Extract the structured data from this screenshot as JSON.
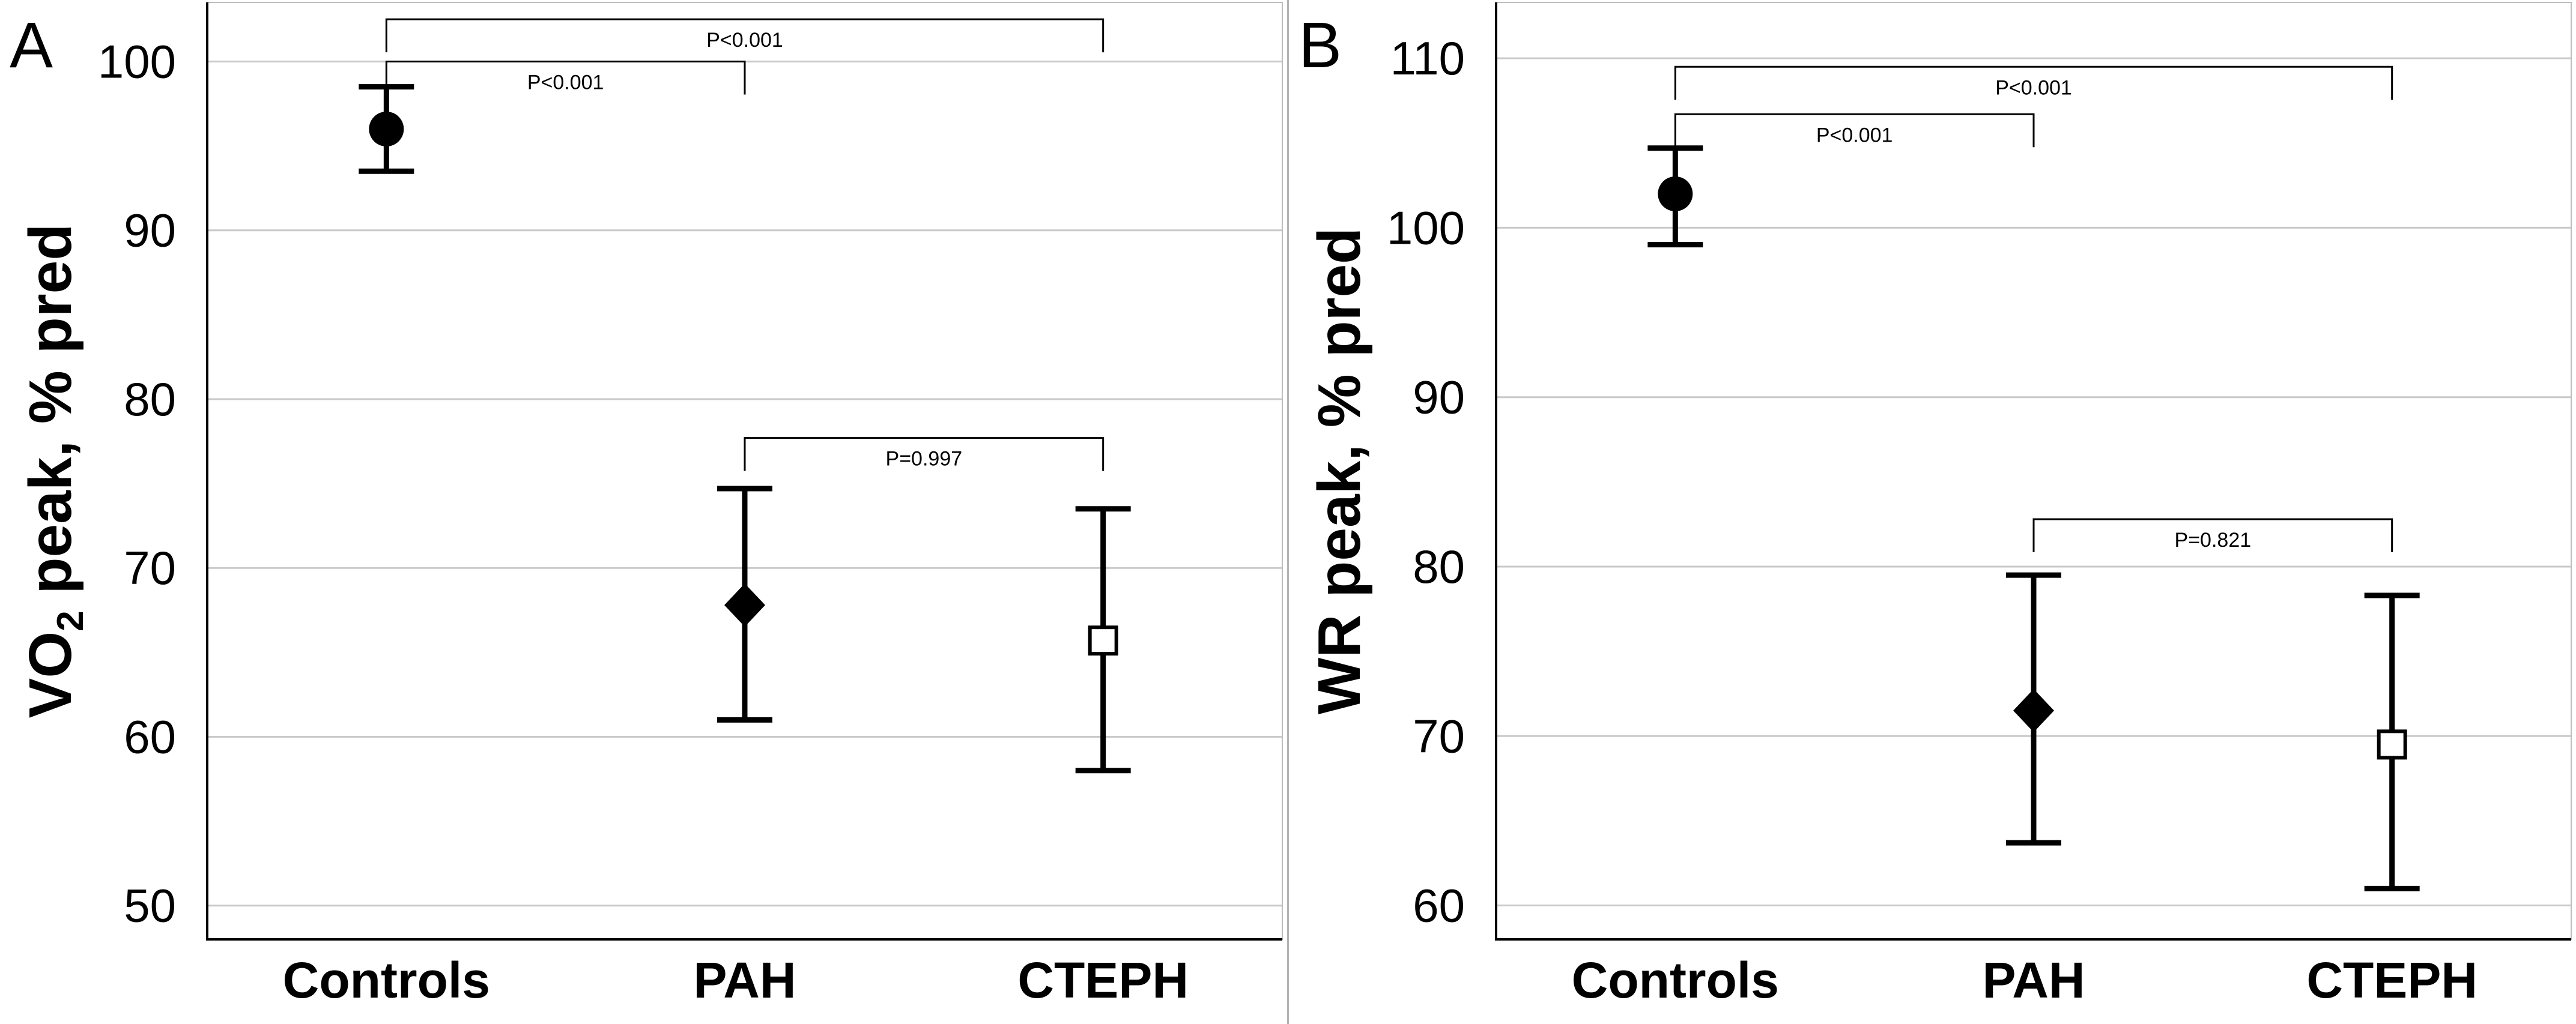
{
  "colors": {
    "text": "#000000",
    "marker": "#000000",
    "axis": "#000000",
    "gridline": "#c9c9c9",
    "frame": "#bdbdbd",
    "divider": "#b3b3b3",
    "background": "#ffffff"
  },
  "chart_data": [
    {
      "type": "scatter",
      "subtype": "mean-with-error-bars",
      "panel_label": "A",
      "ylabel": "VO2 peak, % pred",
      "ylabel_parts": [
        {
          "text": "VO"
        },
        {
          "text": "2",
          "sub": true
        },
        {
          "text": " peak, % pred"
        }
      ],
      "ylim": [
        48,
        103.5
      ],
      "yticks": [
        50,
        60,
        70,
        80,
        90,
        100
      ],
      "grid": true,
      "categories": [
        "Controls",
        "PAH",
        "CTEPH"
      ],
      "points": [
        {
          "category": "Controls",
          "marker": "filled-circle",
          "mean": 96.0,
          "lower": 93.5,
          "upper": 98.5
        },
        {
          "category": "PAH",
          "marker": "filled-diamond",
          "mean": 67.8,
          "lower": 61.0,
          "upper": 74.7
        },
        {
          "category": "CTEPH",
          "marker": "open-square",
          "mean": 65.7,
          "lower": 58.0,
          "upper": 73.5
        }
      ],
      "comparisons": [
        {
          "from": 0,
          "to": 2,
          "label": "P<0.001",
          "y": 102.5
        },
        {
          "from": 0,
          "to": 1,
          "label": "P<0.001",
          "y": 100.0
        },
        {
          "from": 1,
          "to": 2,
          "label": "P=0.997",
          "y": 77.7
        }
      ]
    },
    {
      "type": "scatter",
      "subtype": "mean-with-error-bars",
      "panel_label": "B",
      "ylabel": "WR peak, % pred",
      "ylabel_parts": [
        {
          "text": "WR peak, % pred"
        }
      ],
      "ylim": [
        58,
        113.3
      ],
      "yticks": [
        60,
        70,
        80,
        90,
        100,
        110
      ],
      "grid": true,
      "categories": [
        "Controls",
        "PAH",
        "CTEPH"
      ],
      "points": [
        {
          "category": "Controls",
          "marker": "filled-circle",
          "mean": 102.0,
          "lower": 99.0,
          "upper": 104.7
        },
        {
          "category": "PAH",
          "marker": "filled-diamond",
          "mean": 71.5,
          "lower": 63.7,
          "upper": 79.5
        },
        {
          "category": "CTEPH",
          "marker": "open-square",
          "mean": 69.5,
          "lower": 61.0,
          "upper": 78.3
        }
      ],
      "comparisons": [
        {
          "from": 0,
          "to": 2,
          "label": "P<0.001",
          "y": 109.5
        },
        {
          "from": 0,
          "to": 1,
          "label": "P<0.001",
          "y": 106.7
        },
        {
          "from": 1,
          "to": 2,
          "label": "P=0.821",
          "y": 82.8
        }
      ]
    }
  ]
}
